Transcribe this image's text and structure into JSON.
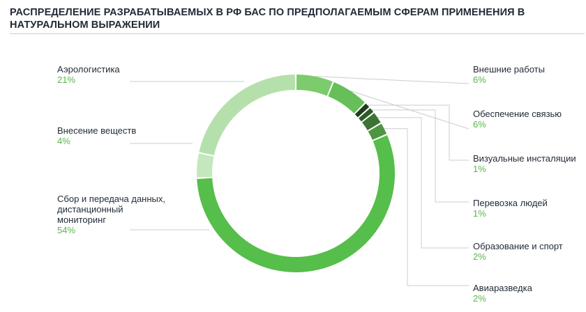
{
  "title": "Распределение разрабатываемых в РФ БАС по предполагаемым сферам применения в натуральном выражении",
  "colors": {
    "accent": "#58b64a",
    "leader": "#c9ccd0"
  },
  "chart_data": {
    "type": "pie",
    "variant": "donut",
    "unit": "%",
    "series": [
      {
        "label": "Внешние работы",
        "value": 6,
        "display": "6%",
        "color": "#7ccb6c"
      },
      {
        "label": "Обеспечение связью",
        "value": 6,
        "display": "6%",
        "color": "#66bf58"
      },
      {
        "label": "Визуальные инсталяции",
        "value": 1,
        "display": "1%",
        "color": "#1f3d1c"
      },
      {
        "label": "Перевозка людей",
        "value": 1,
        "display": "1%",
        "color": "#2d5a28"
      },
      {
        "label": "Образование и спорт",
        "value": 2,
        "display": "2%",
        "color": "#3d7435"
      },
      {
        "label": "Авиаразведка",
        "value": 2,
        "display": "2%",
        "color": "#4e963f"
      },
      {
        "label": "Сбор и передача данных,\nдистанционный\nмониторинг",
        "value": 54,
        "display": "54%",
        "color": "#56be4a"
      },
      {
        "label": "Внесение веществ",
        "value": 4,
        "display": "4%",
        "color": "#c5e7bd"
      },
      {
        "label": "Аэрологистика",
        "value": 21,
        "display": "21%",
        "color": "#b5e0ab"
      }
    ]
  }
}
